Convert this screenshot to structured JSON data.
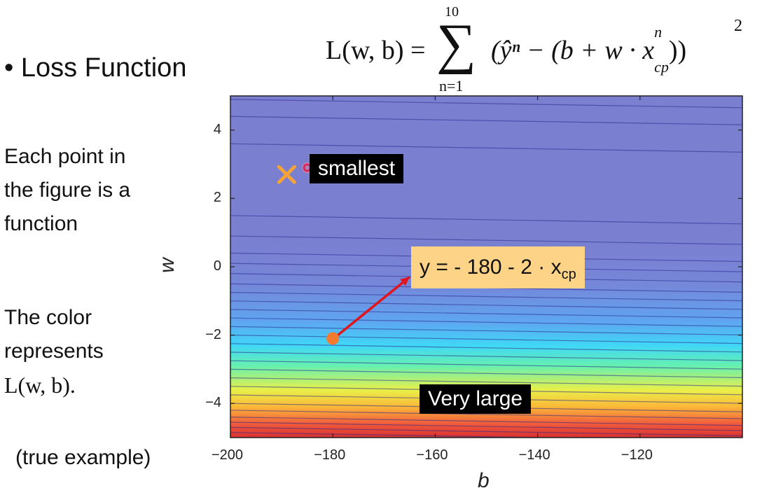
{
  "title": {
    "bullet": "•",
    "text": "Loss Function"
  },
  "formula": {
    "lhs": "L(w, b) =",
    "sum_symbol": "∑",
    "sum_upper": "10",
    "sum_lower": "n=1",
    "body": "(ŷⁿ − (b + w · x",
    "x_sup": "n",
    "x_sub": "cp",
    "close": "))",
    "power": "2"
  },
  "left_text": {
    "lines1": [
      "Each point in",
      "the figure is a",
      "function"
    ],
    "lines2": [
      "The color",
      "represents",
      "L(w, b)."
    ],
    "note": "(true example)"
  },
  "chart_data": {
    "type": "heatmap",
    "title": "",
    "xlabel": "b",
    "ylabel": "w",
    "xlim": [
      -200,
      -100
    ],
    "ylim": [
      -5,
      5
    ],
    "xticks": [
      -200,
      -180,
      -160,
      -140,
      -120
    ],
    "xtick_labels": [
      "−200",
      "−180",
      "−160",
      "−140",
      "−120"
    ],
    "yticks": [
      4,
      2,
      0,
      -2,
      -4
    ],
    "ytick_labels": [
      "4",
      "2",
      "0",
      "−2",
      "−4"
    ],
    "colormap_stops": [
      "#7b7fd0",
      "#7b7fd0",
      "#7686d8",
      "#5fa5f0",
      "#40d7f7",
      "#66f0b0",
      "#e8f04a",
      "#fbb838",
      "#f05a3c",
      "#d93030"
    ],
    "colormap_positions": [
      0,
      0.42,
      0.55,
      0.66,
      0.73,
      0.79,
      0.86,
      0.91,
      0.96,
      1
    ],
    "contour_slope": -0.009,
    "contour_levels_w": [
      4.9,
      4.4,
      3.6,
      1.5,
      0.9,
      0.4,
      0.1,
      -0.2,
      -0.5,
      -0.75,
      -1.0,
      -1.25,
      -1.5,
      -1.75,
      -2.0,
      -2.25,
      -2.5,
      -2.75,
      -3.0,
      -3.25,
      -3.5,
      -3.75,
      -4.0,
      -4.2,
      -4.4,
      -4.55,
      -4.7,
      -4.85
    ],
    "points": [
      {
        "name": "smallest-marker",
        "b": -189,
        "w": 2.7,
        "color": "#f4a23a",
        "shape": "x"
      },
      {
        "name": "small-ring-marker",
        "b": -185,
        "w": 2.9,
        "color": "#e0204a",
        "shape": "ring"
      },
      {
        "name": "start-point",
        "b": -180,
        "w": -2.1,
        "color": "#f47a30",
        "shape": "dot"
      }
    ],
    "arrow": {
      "from_b": -179,
      "from_w": -2.0,
      "to_b": -165,
      "to_w": -0.3,
      "color": "#e0161e"
    },
    "annotations": [
      {
        "name": "label-smallest",
        "text": "smallest"
      },
      {
        "name": "label-very-large",
        "text": "Very large"
      },
      {
        "name": "label-function",
        "text": "y = - 180 - 2 · x",
        "sub": "cp"
      }
    ]
  }
}
